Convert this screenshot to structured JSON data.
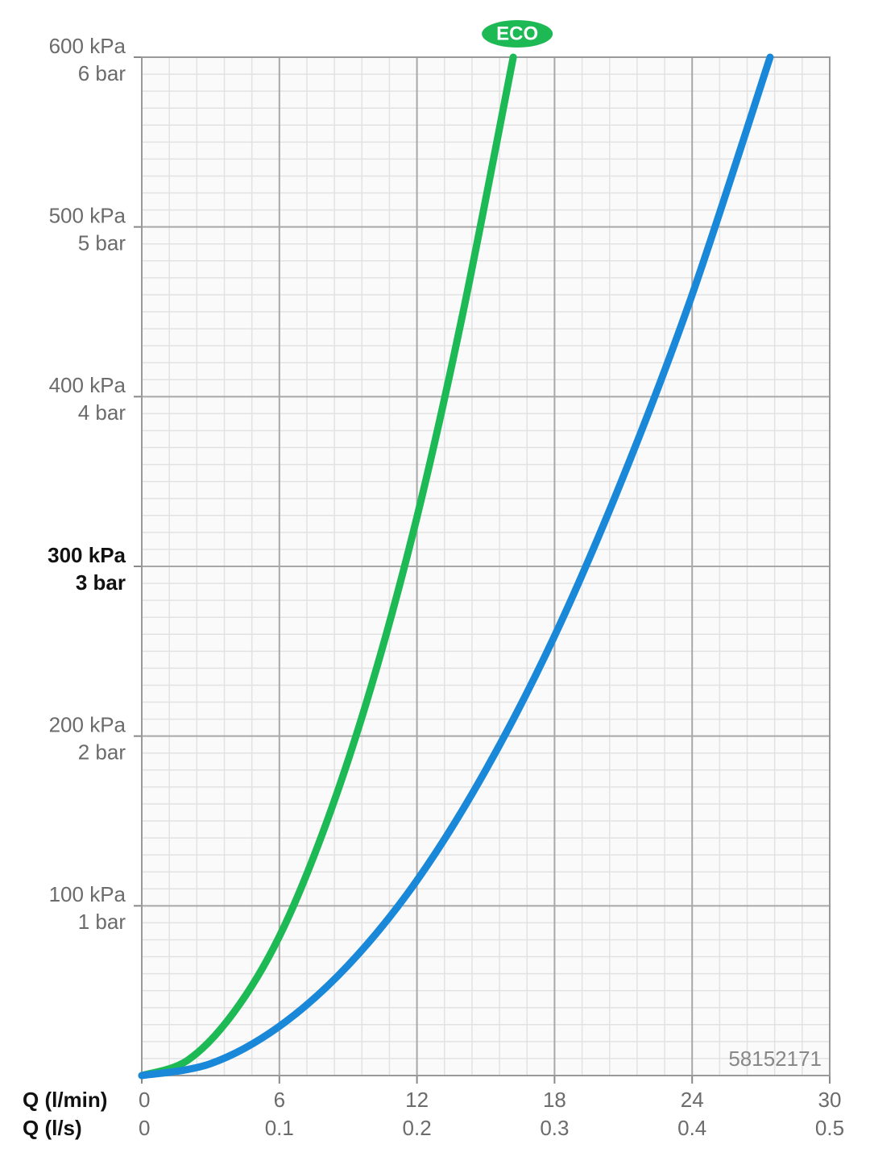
{
  "chart_data": {
    "type": "line",
    "xlabel": "Q (l/min)",
    "x2label": "Q (l/s)",
    "annotation": "58152171",
    "xlim": [
      0,
      30
    ],
    "ylim": [
      0,
      600
    ],
    "xticks": [
      0,
      6,
      12,
      18,
      24,
      30
    ],
    "x2ticks": [
      {
        "value": 0,
        "label": "0"
      },
      {
        "value": 6,
        "label": "0.1"
      },
      {
        "value": 12,
        "label": "0.2"
      },
      {
        "value": 18,
        "label": "0.3"
      },
      {
        "value": 24,
        "label": "0.4"
      },
      {
        "value": 30,
        "label": "0.5"
      }
    ],
    "yticks": [
      {
        "value": 100,
        "label": "100 kPa"
      },
      {
        "value": 200,
        "label": "200 kPa"
      },
      {
        "value": 300,
        "label": "300 kPa"
      },
      {
        "value": 400,
        "label": "400 kPa"
      },
      {
        "value": 500,
        "label": "500 kPa"
      },
      {
        "value": 600,
        "label": "600 kPa"
      }
    ],
    "yticks_bar": [
      {
        "value": 100,
        "label": "1 bar"
      },
      {
        "value": 200,
        "label": "2 bar"
      },
      {
        "value": 300,
        "label": "3 bar"
      },
      {
        "value": 400,
        "label": "4 bar"
      },
      {
        "value": 500,
        "label": "5 bar"
      },
      {
        "value": 600,
        "label": "6 bar"
      }
    ],
    "highlight_ytick": 300,
    "grid": true,
    "x_minor_divisions": 5,
    "y_minor_divisions": 10,
    "series": [
      {
        "name": "ECO",
        "color": "#1db954",
        "x": [
          0,
          2,
          4,
          6,
          8,
          10,
          12,
          14,
          16.2
        ],
        "values": [
          0,
          9,
          37,
          82,
          147,
          229,
          329,
          449,
          600
        ]
      },
      {
        "color": "#1a88d8",
        "x": [
          0,
          3,
          6,
          9,
          12,
          15,
          18,
          21,
          24,
          27.4
        ],
        "values": [
          0,
          7,
          29,
          65,
          115,
          180,
          259,
          353,
          460,
          600
        ]
      }
    ]
  }
}
